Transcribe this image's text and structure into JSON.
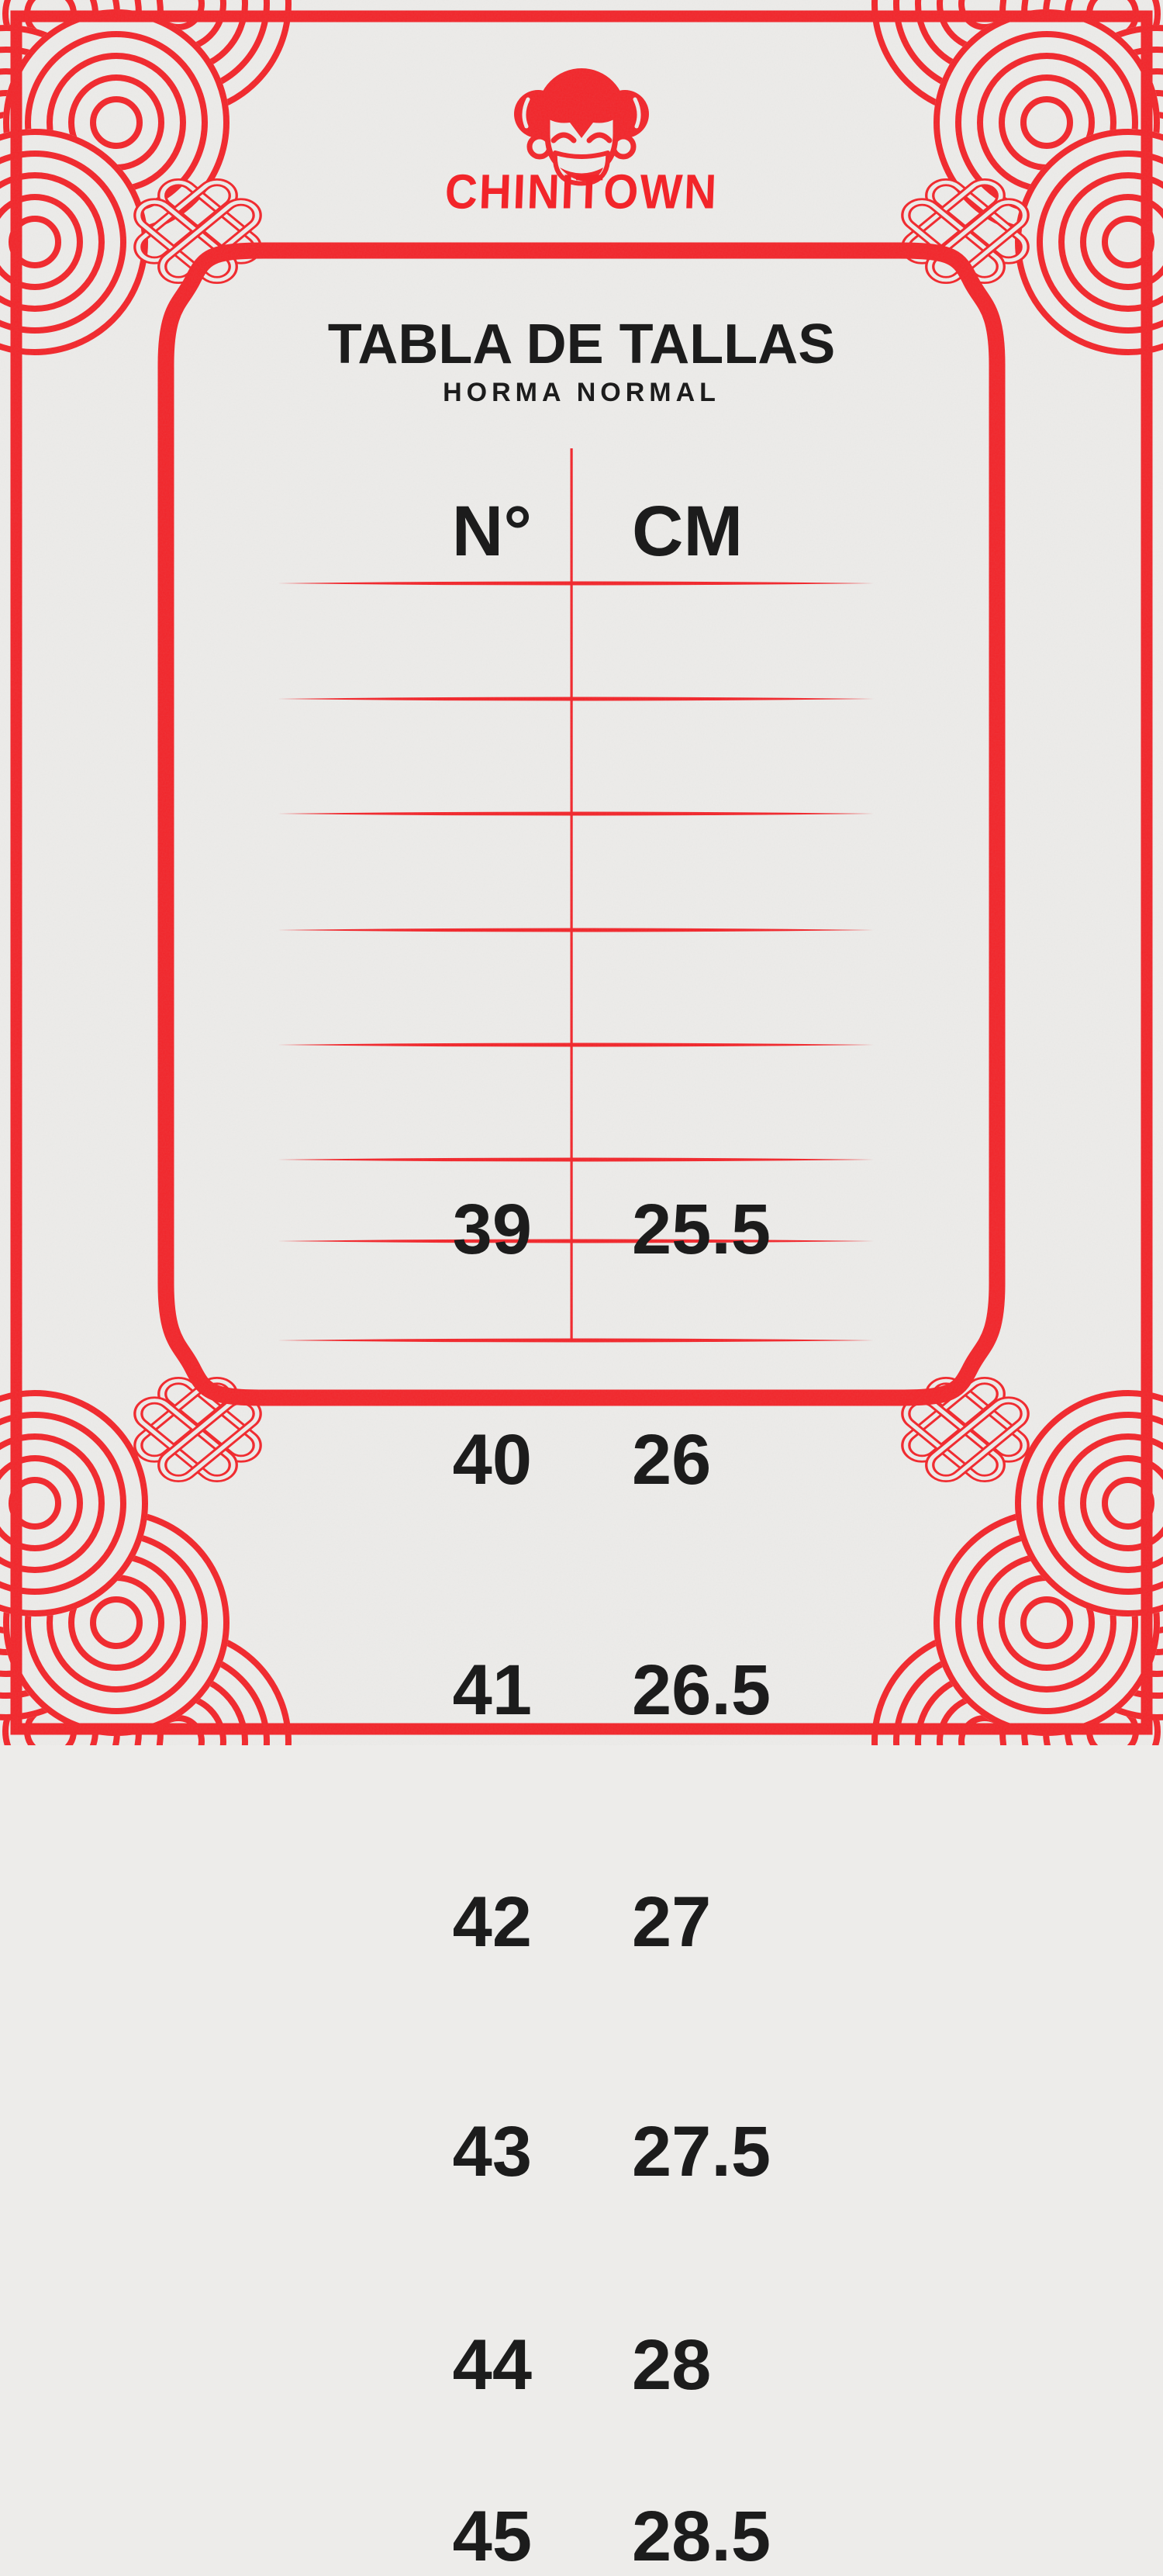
{
  "brand": {
    "wordmark": "CHINITOWN"
  },
  "title": "TABLA DE TALLAS",
  "subtitle": "HORMA NORMAL",
  "size_table": {
    "columns": [
      "N°",
      "CM"
    ],
    "rows": [
      {
        "size": "39",
        "cm": "25.5"
      },
      {
        "size": "40",
        "cm": "26"
      },
      {
        "size": "41",
        "cm": "26.5"
      },
      {
        "size": "42",
        "cm": "27"
      },
      {
        "size": "43",
        "cm": "27.5"
      },
      {
        "size": "44",
        "cm": "28"
      },
      {
        "size": "45",
        "cm": "28.5"
      }
    ]
  },
  "icons": {
    "logo": "chinitown-girl-face-logo",
    "corner_ornament": "cloud-arcs-icon",
    "knot_ornament": "endless-knot-icon"
  },
  "colors": {
    "red": "#f2252a",
    "paper": "#edecea",
    "ink": "#1c1c1c"
  }
}
